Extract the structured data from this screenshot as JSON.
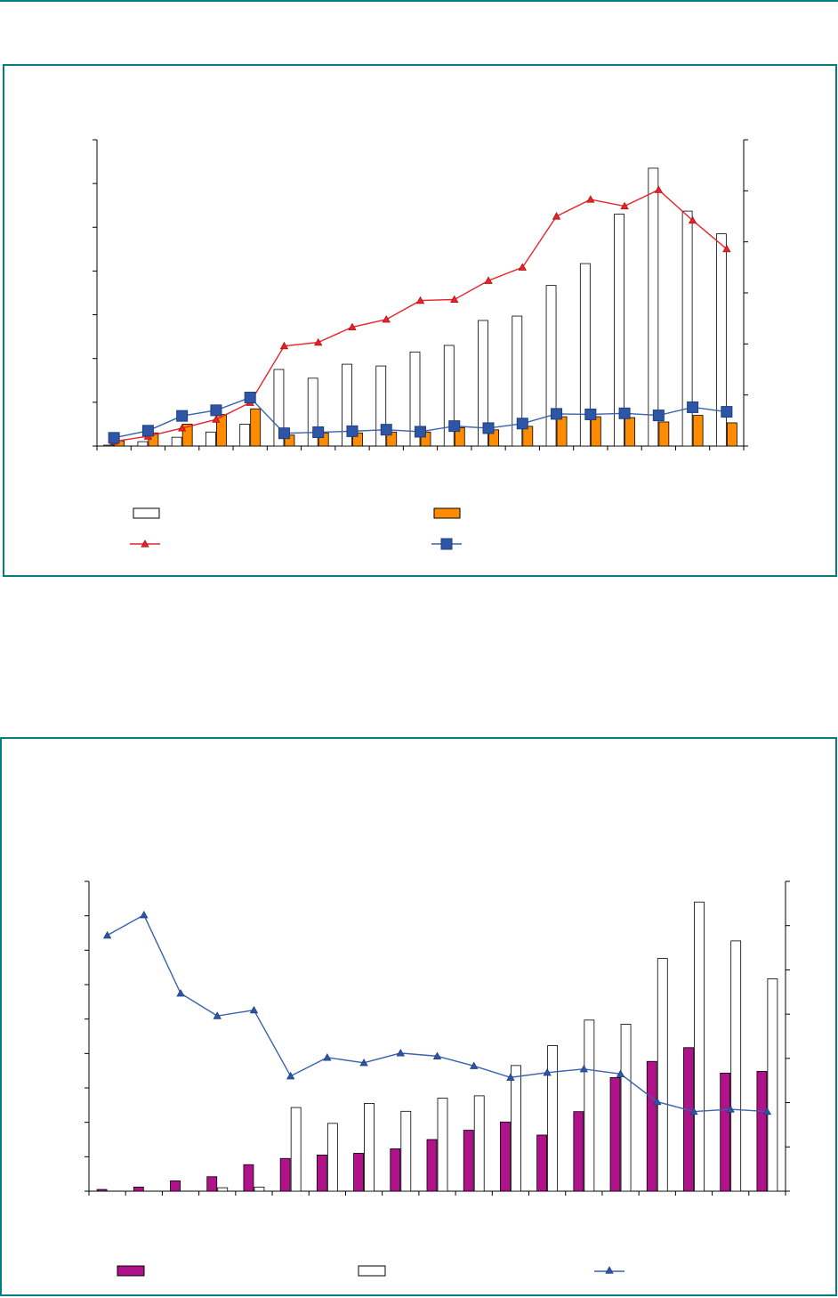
{
  "colors": {
    "border": "#008080",
    "axis": "#000000",
    "bar_white": "#ffffff",
    "bar_orange": "#ff8c00",
    "bar_magenta": "#b0128a",
    "line_red": "#e8232a",
    "line_blue": "#3a62ad",
    "marker_blue": "#2f56a6"
  },
  "chart_data": [
    {
      "type": "bar",
      "title": "",
      "xlabel": "",
      "ylabel": "",
      "ylabel_right": "",
      "axis_labels_visible": false,
      "legend_position": "bottom",
      "categories": [
        "",
        "",
        "",
        "",
        "",
        "",
        "",
        "",
        "",
        "",
        "",
        "",
        "",
        "",
        "",
        "",
        "",
        "",
        ""
      ],
      "ylim": [
        0,
        7
      ],
      "ylim_right": [
        0,
        6
      ],
      "series": [
        {
          "role": "bars-left-axis",
          "style": "white-outlined",
          "values": [
            0.02,
            0.1,
            0.2,
            0.32,
            0.5,
            1.75,
            1.55,
            1.87,
            1.83,
            2.15,
            2.3,
            2.87,
            2.97,
            3.67,
            4.17,
            5.3,
            6.35,
            5.37,
            4.85
          ]
        },
        {
          "role": "bars-left-axis",
          "style": "orange",
          "values": [
            0.12,
            0.3,
            0.5,
            0.72,
            0.85,
            0.25,
            0.3,
            0.3,
            0.32,
            0.32,
            0.42,
            0.37,
            0.45,
            0.67,
            0.67,
            0.65,
            0.55,
            0.7,
            0.53
          ]
        },
        {
          "role": "line-right-axis",
          "style": "red-triangle",
          "values": [
            0.09,
            0.19,
            0.35,
            0.52,
            0.85,
            1.96,
            2.03,
            2.33,
            2.48,
            2.85,
            2.87,
            3.24,
            3.5,
            4.5,
            4.83,
            4.7,
            5.02,
            4.42,
            3.86
          ]
        },
        {
          "role": "line-right-axis",
          "style": "blue-square",
          "values": [
            0.16,
            0.3,
            0.59,
            0.7,
            0.95,
            0.25,
            0.27,
            0.29,
            0.32,
            0.28,
            0.39,
            0.35,
            0.44,
            0.63,
            0.62,
            0.64,
            0.6,
            0.76,
            0.67
          ]
        }
      ],
      "left_ticks": 7,
      "right_ticks": 6
    },
    {
      "type": "bar",
      "title": "",
      "xlabel": "",
      "ylabel": "",
      "ylabel_right": "",
      "axis_labels_visible": false,
      "legend_position": "bottom",
      "categories": [
        "",
        "",
        "",
        "",
        "",
        "",
        "",
        "",
        "",
        "",
        "",
        "",
        "",
        "",
        "",
        "",
        "",
        "",
        ""
      ],
      "ylim": [
        0,
        9
      ],
      "ylim_right": [
        0,
        7
      ],
      "series": [
        {
          "role": "bars-left-axis",
          "style": "magenta",
          "values": [
            0.05,
            0.12,
            0.3,
            0.42,
            0.77,
            0.95,
            1.05,
            1.1,
            1.23,
            1.5,
            1.77,
            2.01,
            1.63,
            2.31,
            3.3,
            3.77,
            4.17,
            3.43,
            3.48
          ]
        },
        {
          "role": "bars-left-axis",
          "style": "white-outlined",
          "values": [
            0,
            0,
            0,
            0.1,
            0.12,
            2.43,
            1.97,
            2.55,
            2.32,
            2.7,
            2.77,
            3.65,
            4.23,
            4.97,
            4.85,
            6.76,
            8.4,
            7.27,
            6.17
          ]
        },
        {
          "role": "line-right-axis",
          "style": "blue-triangle",
          "values": [
            5.78,
            6.24,
            4.47,
            3.96,
            4.09,
            2.6,
            3.02,
            2.9,
            3.12,
            3.05,
            2.83,
            2.57,
            2.68,
            2.76,
            2.65,
            2.02,
            1.8,
            1.85,
            1.8
          ]
        }
      ],
      "left_ticks": 9,
      "right_ticks": 7
    }
  ]
}
